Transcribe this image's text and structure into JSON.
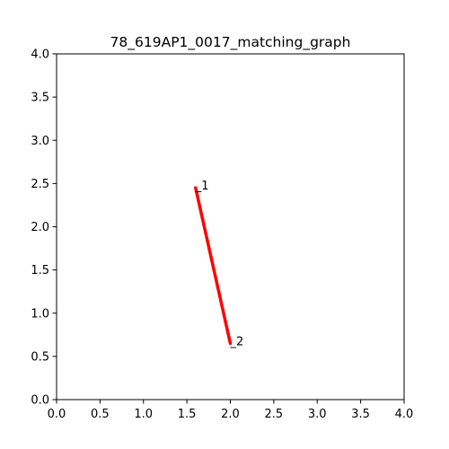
{
  "chart_data": {
    "type": "line",
    "title": "78_619AP1_0017_matching_graph",
    "xlabel": "",
    "ylabel": "",
    "xlim": [
      0,
      4
    ],
    "ylim": [
      0,
      4
    ],
    "grid": false,
    "x_ticks": [
      "0.0",
      "0.5",
      "1.0",
      "1.5",
      "2.0",
      "2.5",
      "3.0",
      "3.5",
      "4.0"
    ],
    "y_ticks": [
      "0.0",
      "0.5",
      "1.0",
      "1.5",
      "2.0",
      "2.5",
      "3.0",
      "3.5",
      "4.0"
    ],
    "nodes": [
      {
        "label": "1",
        "x": 1.6,
        "y": 2.45
      },
      {
        "label": "2",
        "x": 2.0,
        "y": 0.65
      }
    ],
    "edges": [
      {
        "from": 0,
        "to": 1,
        "color": "#ff0000"
      }
    ]
  }
}
